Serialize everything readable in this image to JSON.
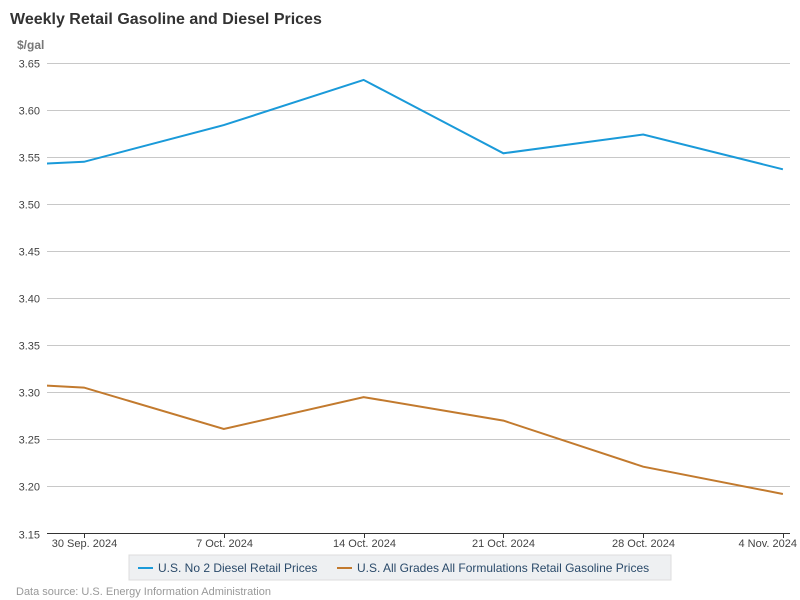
{
  "chart_data": {
    "type": "line",
    "title": "Weekly Retail Gasoline and Diesel Prices",
    "ylabel": "$/gal",
    "xlabel": "",
    "ylim": [
      3.15,
      3.65
    ],
    "yticks": [
      "3.15",
      "3.20",
      "3.25",
      "3.30",
      "3.35",
      "3.40",
      "3.45",
      "3.50",
      "3.55",
      "3.60",
      "3.65"
    ],
    "xlim_days_from_first_tick": [
      -1.85,
      35.4
    ],
    "x_days": [
      -7,
      0,
      7,
      14,
      21,
      28,
      35
    ],
    "x_labels": [
      "",
      "30 Sep. 2024",
      "7 Oct. 2024",
      "14 Oct. 2024",
      "21 Oct. 2024",
      "28 Oct. 2024",
      "4 Nov. 2024"
    ],
    "grid": true,
    "legend_position": "bottom",
    "series": [
      {
        "name": "U.S. No 2 Diesel Retail Prices",
        "color": "#1a9ad9",
        "values": [
          3.538,
          3.545,
          3.584,
          3.632,
          3.554,
          3.574,
          3.537
        ]
      },
      {
        "name": "U.S. All Grades All Formulations Retail Gasoline Prices",
        "color": "#c27a2e",
        "values": [
          3.313,
          3.305,
          3.261,
          3.295,
          3.27,
          3.221,
          3.192
        ]
      }
    ],
    "source": "Data source: U.S. Energy Information Administration"
  }
}
